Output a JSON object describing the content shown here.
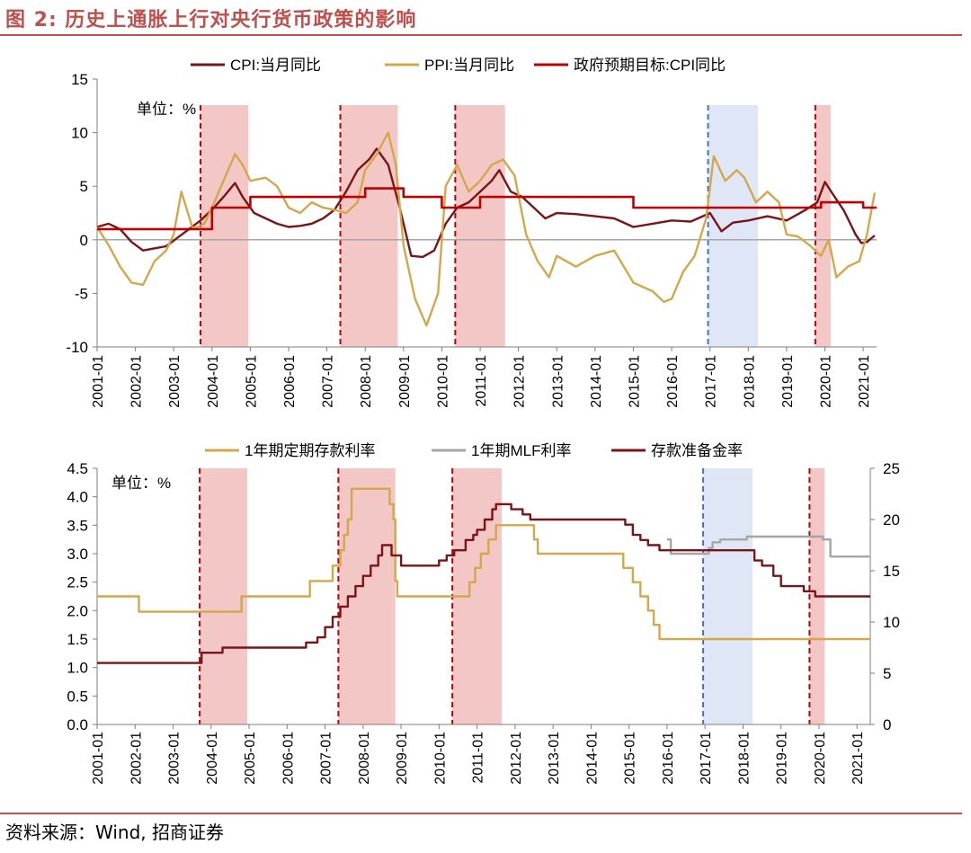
{
  "figure": {
    "title": "图 2:  历史上通胀上行对央行货币政策的影响",
    "source": "资料来源：Wind, 招商证券"
  },
  "colors": {
    "title_red": "#c0504d",
    "cpi": "#7b1416",
    "ppi": "#d3a84a",
    "target": "#c00000",
    "deposit": "#d3a84a",
    "mlf": "#a6a6a6",
    "rrr": "#7b1416",
    "shade_red": "#f2c7c6",
    "shade_blue": "#dfe7f6",
    "line_red": "#c00000",
    "line_blue": "#4472c4"
  },
  "chart_data": [
    {
      "type": "line",
      "unit_note": "单位：%",
      "ylim": [
        -10,
        15
      ],
      "yticks": [
        "15",
        "10",
        "5",
        "0",
        "-5",
        "-10"
      ],
      "xlim": [
        2001.0,
        2021.35
      ],
      "xticks": [
        "2001-01",
        "2002-01",
        "2003-01",
        "2004-01",
        "2005-01",
        "2006-01",
        "2007-01",
        "2008-01",
        "2009-01",
        "2010-01",
        "2011-01",
        "2012-01",
        "2013-01",
        "2014-01",
        "2015-01",
        "2016-01",
        "2017-01",
        "2018-01",
        "2019-01",
        "2020-01",
        "2021-01"
      ],
      "legend_position": "top",
      "shaded_periods": [
        {
          "start": 2003.7,
          "end": 2004.95,
          "color": "red"
        },
        {
          "start": 2007.35,
          "end": 2008.85,
          "color": "red"
        },
        {
          "start": 2010.35,
          "end": 2011.65,
          "color": "red"
        },
        {
          "start": 2016.95,
          "end": 2018.25,
          "color": "blue"
        },
        {
          "start": 2019.75,
          "end": 2020.15,
          "color": "red"
        }
      ],
      "marker_lines": [
        {
          "x": 2003.7,
          "color": "red"
        },
        {
          "x": 2007.35,
          "color": "red"
        },
        {
          "x": 2010.35,
          "color": "red"
        },
        {
          "x": 2016.95,
          "color": "blue"
        },
        {
          "x": 2019.75,
          "color": "red"
        }
      ],
      "series": [
        {
          "name": "CPI:当月同比",
          "style": "line",
          "x": [
            2001.0,
            2001.3,
            2001.6,
            2001.9,
            2002.2,
            2002.5,
            2002.8,
            2003.1,
            2003.4,
            2003.7,
            2004.0,
            2004.3,
            2004.6,
            2004.8,
            2005.1,
            2005.4,
            2005.7,
            2006.0,
            2006.3,
            2006.6,
            2006.9,
            2007.2,
            2007.5,
            2007.8,
            2008.1,
            2008.3,
            2008.6,
            2008.9,
            2009.2,
            2009.5,
            2009.8,
            2010.1,
            2010.4,
            2010.7,
            2011.0,
            2011.3,
            2011.5,
            2011.8,
            2012.1,
            2012.4,
            2012.7,
            2013.0,
            2013.5,
            2014.0,
            2014.5,
            2015.0,
            2015.5,
            2016.0,
            2016.5,
            2017.0,
            2017.3,
            2017.6,
            2018.0,
            2018.5,
            2019.0,
            2019.5,
            2019.8,
            2020.0,
            2020.2,
            2020.5,
            2020.8,
            2020.95,
            2021.1,
            2021.3
          ],
          "values": [
            1.2,
            1.5,
            1.0,
            -0.2,
            -1.0,
            -0.8,
            -0.6,
            0.2,
            1.0,
            1.8,
            2.8,
            4.0,
            5.3,
            4.0,
            2.5,
            2.0,
            1.5,
            1.2,
            1.3,
            1.5,
            2.0,
            2.8,
            4.5,
            6.5,
            7.5,
            8.5,
            7.0,
            3.0,
            -1.5,
            -1.6,
            -1.0,
            1.5,
            3.0,
            3.5,
            4.5,
            5.5,
            6.5,
            4.5,
            4.0,
            3.0,
            2.0,
            2.5,
            2.4,
            2.2,
            2.0,
            1.2,
            1.5,
            1.8,
            1.7,
            2.5,
            0.8,
            1.6,
            1.8,
            2.2,
            1.8,
            2.8,
            3.5,
            5.4,
            4.3,
            2.7,
            0.5,
            -0.3,
            -0.2,
            0.4
          ]
        },
        {
          "name": "PPI:当月同比",
          "style": "line",
          "x": [
            2001.0,
            2001.3,
            2001.6,
            2001.9,
            2002.2,
            2002.5,
            2002.8,
            2003.0,
            2003.2,
            2003.5,
            2003.8,
            2004.0,
            2004.3,
            2004.6,
            2004.8,
            2005.0,
            2005.4,
            2005.7,
            2006.0,
            2006.3,
            2006.6,
            2006.9,
            2007.2,
            2007.5,
            2007.8,
            2008.0,
            2008.3,
            2008.6,
            2008.8,
            2009.0,
            2009.3,
            2009.6,
            2009.9,
            2010.1,
            2010.4,
            2010.7,
            2011.0,
            2011.3,
            2011.6,
            2011.9,
            2012.2,
            2012.5,
            2012.8,
            2013.0,
            2013.5,
            2014.0,
            2014.5,
            2015.0,
            2015.5,
            2015.8,
            2016.0,
            2016.3,
            2016.6,
            2016.9,
            2017.1,
            2017.4,
            2017.7,
            2017.9,
            2018.2,
            2018.5,
            2018.8,
            2019.0,
            2019.3,
            2019.6,
            2019.9,
            2020.1,
            2020.3,
            2020.6,
            2020.9,
            2021.1,
            2021.3
          ],
          "values": [
            1.2,
            -0.5,
            -2.5,
            -4.0,
            -4.2,
            -2.0,
            -1.0,
            0.5,
            4.5,
            1.0,
            1.5,
            3.0,
            5.5,
            8.0,
            7.0,
            5.5,
            5.8,
            5.0,
            3.0,
            2.5,
            3.5,
            3.0,
            2.8,
            2.5,
            3.5,
            6.5,
            8.0,
            10.0,
            7.0,
            -0.5,
            -5.5,
            -8.0,
            -5.0,
            5.0,
            7.0,
            4.5,
            5.5,
            7.0,
            7.5,
            6.0,
            0.5,
            -2.0,
            -3.5,
            -1.5,
            -2.5,
            -1.5,
            -1.0,
            -4.0,
            -4.8,
            -5.8,
            -5.5,
            -3.0,
            -1.5,
            2.0,
            7.8,
            5.5,
            6.5,
            5.8,
            3.5,
            4.5,
            3.5,
            0.5,
            0.3,
            -0.5,
            -1.5,
            0.0,
            -3.5,
            -2.5,
            -2.0,
            0.5,
            4.4
          ]
        },
        {
          "name": "政府预期目标:CPI同比",
          "style": "step",
          "x": [
            2001.0,
            2004.0,
            2005.0,
            2008.0,
            2009.0,
            2010.0,
            2011.0,
            2015.0,
            2019.9,
            2021.0,
            2021.35
          ],
          "values": [
            1.0,
            3.0,
            4.0,
            4.8,
            4.0,
            3.0,
            4.0,
            3.0,
            3.5,
            3.0,
            3.0
          ]
        }
      ]
    },
    {
      "type": "line",
      "unit_note": "单位：%",
      "ylim": [
        0,
        4.5
      ],
      "yticks": [
        "4.5",
        "4.0",
        "3.5",
        "3.0",
        "2.5",
        "2.0",
        "1.5",
        "1.0",
        "0.5",
        "0.0"
      ],
      "y2lim": [
        0,
        25
      ],
      "y2ticks": [
        "25",
        "20",
        "15",
        "10",
        "5",
        "0"
      ],
      "xlim": [
        2001.0,
        2021.35
      ],
      "xticks": [
        "2001-01",
        "2002-01",
        "2003-01",
        "2004-01",
        "2005-01",
        "2006-01",
        "2007-01",
        "2008-01",
        "2009-01",
        "2010-01",
        "2011-01",
        "2012-01",
        "2013-01",
        "2014-01",
        "2015-01",
        "2016-01",
        "2017-01",
        "2018-01",
        "2019-01",
        "2020-01",
        "2021-01"
      ],
      "legend_position": "top",
      "shaded_periods": [
        {
          "start": 2003.7,
          "end": 2004.95,
          "color": "red"
        },
        {
          "start": 2007.35,
          "end": 2008.85,
          "color": "red"
        },
        {
          "start": 2010.35,
          "end": 2011.65,
          "color": "red"
        },
        {
          "start": 2016.95,
          "end": 2018.25,
          "color": "blue"
        },
        {
          "start": 2019.75,
          "end": 2020.15,
          "color": "red"
        }
      ],
      "marker_lines": [
        {
          "x": 2003.7,
          "color": "red"
        },
        {
          "x": 2007.35,
          "color": "red"
        },
        {
          "x": 2010.35,
          "color": "red"
        },
        {
          "x": 2016.95,
          "color": "blue"
        },
        {
          "x": 2019.75,
          "color": "red"
        }
      ],
      "series": [
        {
          "name": "1年期定期存款利率",
          "axis": "left",
          "style": "step",
          "x": [
            2001.0,
            2002.1,
            2004.8,
            2006.6,
            2007.2,
            2007.4,
            2007.5,
            2007.6,
            2007.7,
            2008.7,
            2008.8,
            2008.85,
            2008.9,
            2010.8,
            2010.95,
            2011.1,
            2011.3,
            2011.5,
            2012.5,
            2012.6,
            2014.85,
            2015.1,
            2015.3,
            2015.5,
            2015.65,
            2015.8,
            2021.35
          ],
          "values": [
            2.25,
            1.98,
            2.25,
            2.52,
            2.79,
            3.06,
            3.33,
            3.6,
            4.14,
            3.87,
            3.6,
            2.52,
            2.25,
            2.5,
            2.75,
            3.0,
            3.25,
            3.5,
            3.25,
            3.0,
            2.75,
            2.5,
            2.25,
            2.0,
            1.75,
            1.5,
            1.5
          ]
        },
        {
          "name": "1年期MLF利率",
          "axis": "left",
          "style": "step",
          "x": [
            2016.0,
            2016.1,
            2017.1,
            2017.2,
            2017.4,
            2018.1,
            2020.1,
            2020.3,
            2021.35
          ],
          "values": [
            3.25,
            3.0,
            3.1,
            3.2,
            3.25,
            3.3,
            3.25,
            2.95,
            2.95
          ]
        },
        {
          "name": "存款准备金率",
          "axis": "right",
          "style": "step",
          "x": [
            2001.0,
            2003.75,
            2004.3,
            2006.5,
            2006.8,
            2007.0,
            2007.2,
            2007.4,
            2007.6,
            2007.8,
            2008.0,
            2008.2,
            2008.4,
            2008.5,
            2008.75,
            2009.0,
            2010.0,
            2010.2,
            2010.4,
            2010.7,
            2010.9,
            2011.0,
            2011.2,
            2011.4,
            2011.5,
            2011.9,
            2012.2,
            2012.4,
            2014.9,
            2015.1,
            2015.3,
            2015.5,
            2015.8,
            2016.1,
            2018.3,
            2018.5,
            2018.8,
            2019.0,
            2019.6,
            2019.9,
            2020.1,
            2021.35
          ],
          "values": [
            6.0,
            7.0,
            7.5,
            8.0,
            8.5,
            9.5,
            10.5,
            11.5,
            12.5,
            13.5,
            14.5,
            15.5,
            16.5,
            17.5,
            16.5,
            15.5,
            16.0,
            16.5,
            17.0,
            18.0,
            18.5,
            19.0,
            20.0,
            21.0,
            21.5,
            21.0,
            20.5,
            20.0,
            19.5,
            18.5,
            18.0,
            17.5,
            17.0,
            17.0,
            16.0,
            15.5,
            14.5,
            13.5,
            13.0,
            12.5,
            12.5,
            12.5
          ]
        }
      ]
    }
  ]
}
